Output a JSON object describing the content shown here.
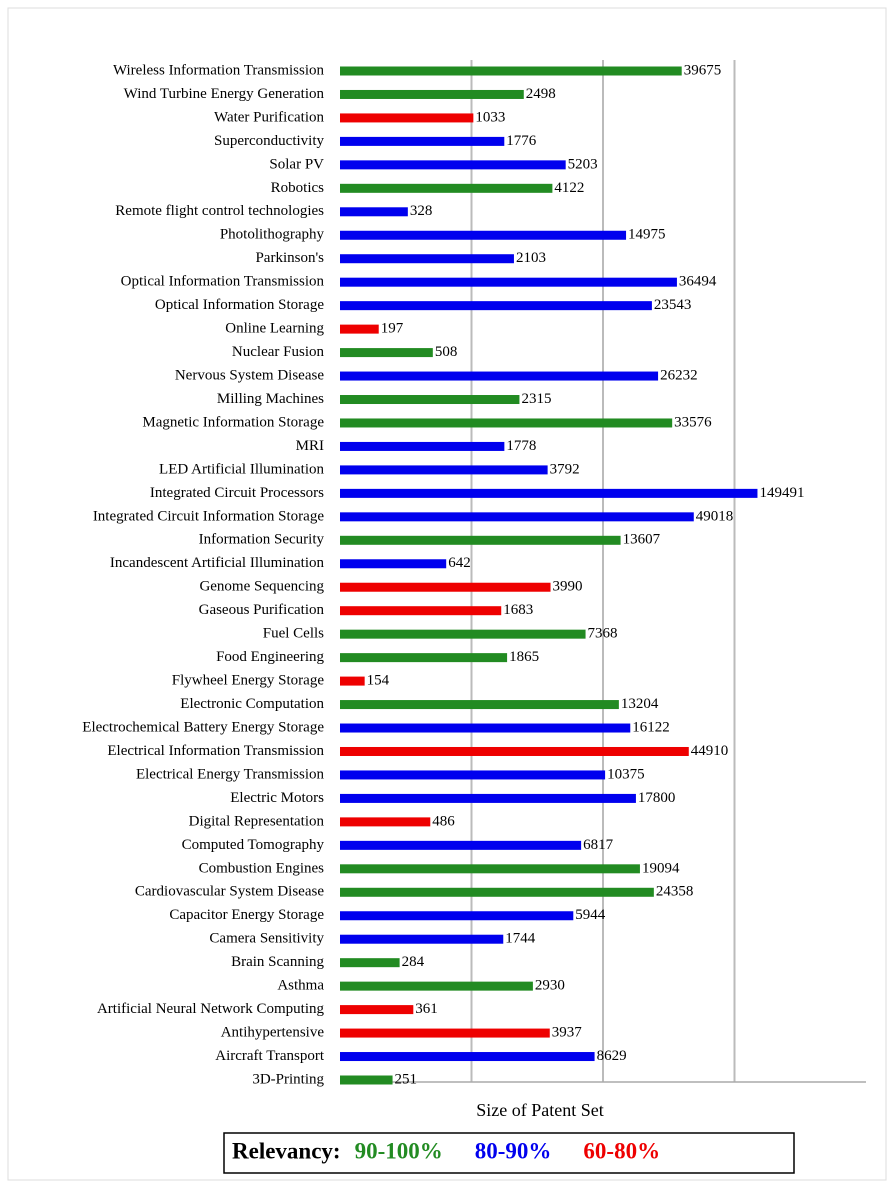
{
  "chart_data": {
    "type": "bar",
    "orientation": "horizontal",
    "log_scale": true,
    "x_axis_label": "Size of Patent Set",
    "categories": [
      "Wireless Information Transmission",
      "Wind Turbine Energy Generation",
      "Water Purification",
      "Superconductivity",
      "Solar PV",
      "Robotics",
      "Remote flight control technologies",
      "Photolithography",
      "Parkinson's",
      "Optical Information Transmission",
      "Optical Information Storage",
      "Online Learning",
      "Nuclear Fusion",
      "Nervous System Disease",
      "Milling Machines",
      "Magnetic Information Storage",
      "MRI",
      "LED Artificial Illumination",
      "Integrated Circuit Processors",
      "Integrated Circuit Information Storage",
      "Information Security",
      "Incandescent Artificial Illumination",
      "Genome Sequencing",
      "Gaseous Purification",
      "Fuel Cells",
      "Food Engineering",
      "Flywheel Energy Storage",
      "Electronic Computation",
      "Electrochemical Battery Energy Storage",
      "Electrical Information Transmission",
      "Electrical Energy Transmission",
      "Electric Motors",
      "Digital Representation",
      "Computed Tomography",
      "Combustion Engines",
      "Cardiovascular System Disease",
      "Capacitor Energy Storage",
      "Camera Sensitivity",
      "Brain Scanning",
      "Asthma",
      "Artificial Neural Network Computing",
      "Antihypertensive",
      "Aircraft Transport",
      "3D-Printing"
    ],
    "values": [
      39675,
      2498,
      1033,
      1776,
      5203,
      4122,
      328,
      14975,
      2103,
      36494,
      23543,
      197,
      508,
      26232,
      2315,
      33576,
      1778,
      3792,
      149491,
      49018,
      13607,
      642,
      3990,
      1683,
      7368,
      1865,
      154,
      13204,
      16122,
      44910,
      10375,
      17800,
      486,
      6817,
      19094,
      24358,
      5944,
      1744,
      284,
      2930,
      361,
      3937,
      8629,
      251
    ],
    "colors": [
      "#228b22",
      "#228b22",
      "#ee0000",
      "#0000ee",
      "#0000ee",
      "#228b22",
      "#0000ee",
      "#0000ee",
      "#0000ee",
      "#0000ee",
      "#0000ee",
      "#ee0000",
      "#228b22",
      "#0000ee",
      "#228b22",
      "#228b22",
      "#0000ee",
      "#0000ee",
      "#0000ee",
      "#0000ee",
      "#228b22",
      "#0000ee",
      "#ee0000",
      "#ee0000",
      "#228b22",
      "#228b22",
      "#ee0000",
      "#228b22",
      "#0000ee",
      "#ee0000",
      "#0000ee",
      "#0000ee",
      "#ee0000",
      "#0000ee",
      "#228b22",
      "#228b22",
      "#0000ee",
      "#0000ee",
      "#228b22",
      "#228b22",
      "#ee0000",
      "#ee0000",
      "#0000ee",
      "#228b22"
    ],
    "xlim": [
      100,
      1000000
    ],
    "xticks": [
      1000,
      10000,
      100000
    ],
    "grid": true,
    "legend": {
      "title": "Relevancy:",
      "position": "bottom",
      "items": [
        {
          "name": "90-100%",
          "color": "#228b22"
        },
        {
          "name": "80-90%",
          "color": "#0000ee"
        },
        {
          "name": "60-80%",
          "color": "#ee0000"
        }
      ]
    }
  }
}
